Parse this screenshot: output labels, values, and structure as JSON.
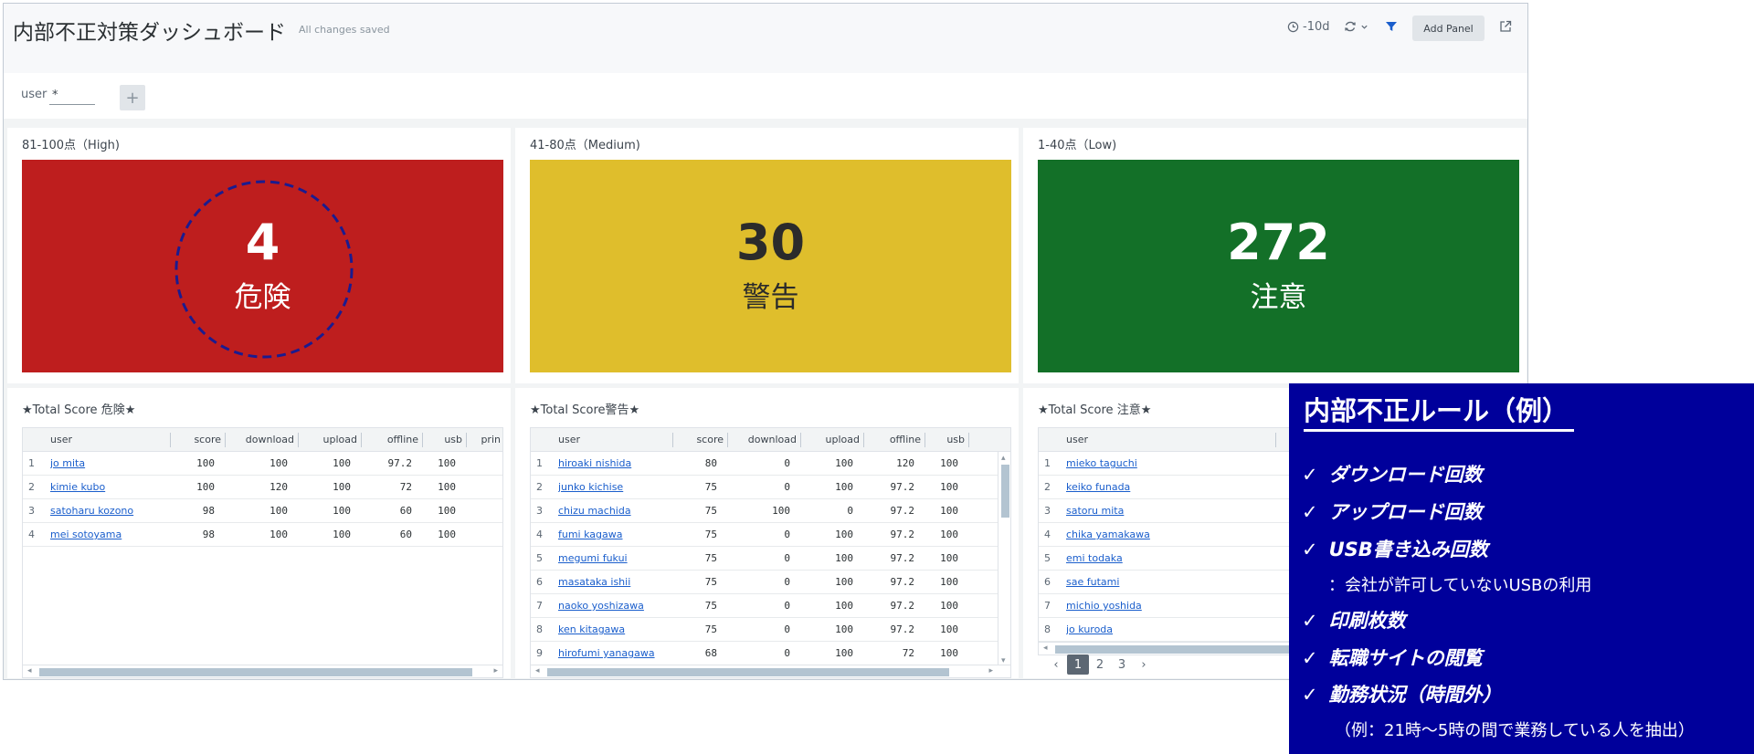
{
  "header": {
    "title": "内部不正対策ダッシュボード",
    "status": "All changes saved",
    "time_range": "-10d",
    "add_panel_label": "Add Panel"
  },
  "inputs": {
    "user_label": "user",
    "user_value": "*",
    "add_symbol": "+"
  },
  "panels": [
    {
      "title": "81-100点（High)",
      "value": "4",
      "label": "危険",
      "color": "#be1e1e"
    },
    {
      "title": "41-80点（Medium)",
      "value": "30",
      "label": "警告",
      "color": "#dfbe2c"
    },
    {
      "title": "1-40点（Low)",
      "value": "272",
      "label": "注意",
      "color": "#137028"
    }
  ],
  "tables": [
    {
      "title": "★Total Score 危険★",
      "columns": [
        "user",
        "score",
        "download",
        "upload",
        "offline",
        "usb",
        "prin"
      ],
      "rows": [
        [
          "1",
          "jo mita",
          "100",
          "100",
          "100",
          "97.2",
          "100"
        ],
        [
          "2",
          "kimie kubo",
          "100",
          "120",
          "100",
          "72",
          "100"
        ],
        [
          "3",
          "satoharu kozono",
          "98",
          "100",
          "100",
          "60",
          "100"
        ],
        [
          "4",
          "mei sotoyama",
          "98",
          "100",
          "100",
          "60",
          "100"
        ]
      ]
    },
    {
      "title": "★Total Score警告★",
      "columns": [
        "user",
        "score",
        "download",
        "upload",
        "offline",
        "usb"
      ],
      "rows": [
        [
          "1",
          "hiroaki nishida",
          "80",
          "0",
          "100",
          "120",
          "100"
        ],
        [
          "2",
          "junko kichise",
          "75",
          "0",
          "100",
          "97.2",
          "100"
        ],
        [
          "3",
          "chizu machida",
          "75",
          "100",
          "0",
          "97.2",
          "100"
        ],
        [
          "4",
          "fumi kagawa",
          "75",
          "0",
          "100",
          "97.2",
          "100"
        ],
        [
          "5",
          "megumi fukui",
          "75",
          "0",
          "100",
          "97.2",
          "100"
        ],
        [
          "6",
          "masataka ishii",
          "75",
          "0",
          "100",
          "97.2",
          "100"
        ],
        [
          "7",
          "naoko yoshizawa",
          "75",
          "0",
          "100",
          "97.2",
          "100"
        ],
        [
          "8",
          "ken kitagawa",
          "75",
          "0",
          "100",
          "97.2",
          "100"
        ],
        [
          "9",
          "hirofumi yanagawa",
          "68",
          "0",
          "100",
          "72",
          "100"
        ]
      ]
    },
    {
      "title": "★Total Score 注意★",
      "columns": [
        "user"
      ],
      "rows": [
        [
          "1",
          "mieko taguchi"
        ],
        [
          "2",
          "keiko funada"
        ],
        [
          "3",
          "satoru mita"
        ],
        [
          "4",
          "chika yamakawa"
        ],
        [
          "5",
          "emi todaka"
        ],
        [
          "6",
          "sae futami"
        ],
        [
          "7",
          "michio yoshida"
        ],
        [
          "8",
          "jo kuroda"
        ]
      ]
    }
  ],
  "pagination": {
    "pages": [
      "1",
      "2",
      "3"
    ],
    "current": "1"
  },
  "rules": {
    "title": "内部不正ルール（例）",
    "items": [
      {
        "text": "ダウンロード回数"
      },
      {
        "text": "アップロード回数"
      },
      {
        "text": "USB書き込み回数",
        "note": "：会社が許可していないUSBの利用"
      },
      {
        "text": "印刷枚数"
      },
      {
        "text": "転職サイトの閲覧"
      },
      {
        "text": "勤務状況（時間外）",
        "note": "（例：21時〜5時の間で業務している人を抽出）"
      }
    ]
  }
}
